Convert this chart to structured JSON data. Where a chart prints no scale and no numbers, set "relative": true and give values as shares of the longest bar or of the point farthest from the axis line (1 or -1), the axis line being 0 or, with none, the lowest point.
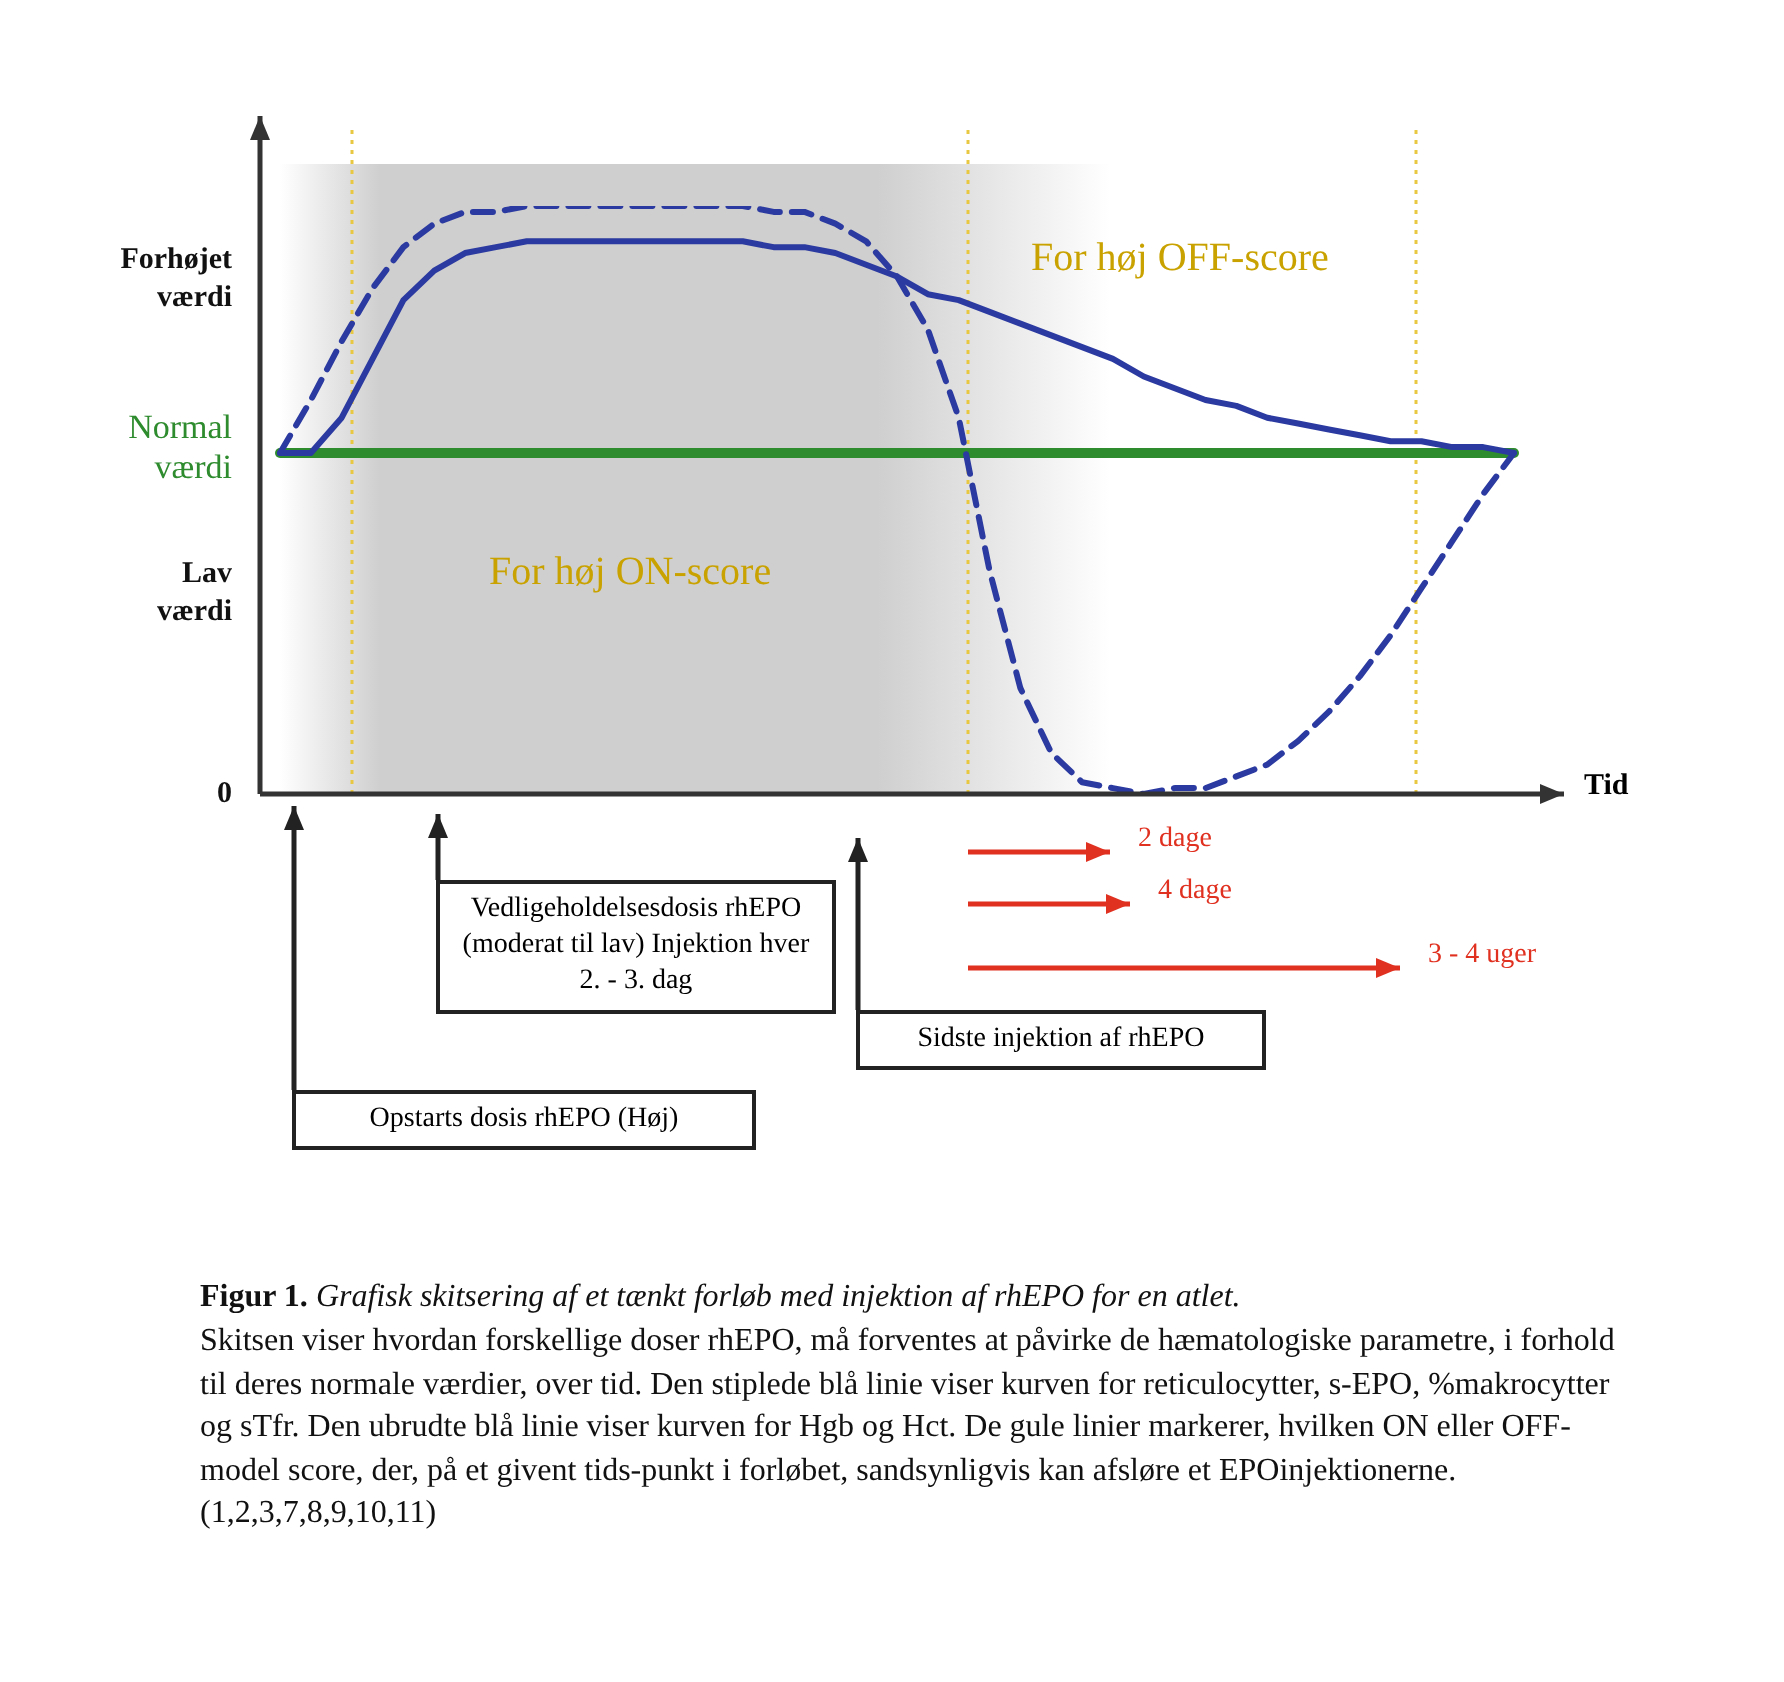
{
  "chart_data": {
    "type": "line",
    "xlabel": "Tid",
    "relative": true,
    "legend": false,
    "marker": "none",
    "categories": [
      null,
      null,
      null,
      null,
      null,
      null,
      null,
      null,
      null,
      null,
      null,
      null,
      null,
      null,
      null,
      null,
      null,
      null,
      null,
      null,
      null,
      null,
      null,
      null,
      null,
      null,
      null,
      null,
      null,
      null,
      null,
      null,
      null,
      null,
      null,
      null,
      null,
      null,
      null,
      null,
      null
    ],
    "series": [
      {
        "color": "#2b3aa0",
        "line_style": "solid",
        "values": [
          0.58,
          0.58,
          0.64,
          0.74,
          0.84,
          0.89,
          0.92,
          0.93,
          0.94,
          0.94,
          0.94,
          0.94,
          0.94,
          0.94,
          0.94,
          0.94,
          0.93,
          0.93,
          0.92,
          0.9,
          0.88,
          0.85,
          0.84,
          0.82,
          0.8,
          0.78,
          0.76,
          0.74,
          0.71,
          0.69,
          0.67,
          0.66,
          0.64,
          0.63,
          0.62,
          0.61,
          0.6,
          0.6,
          0.59,
          0.59,
          0.58
        ]
      },
      {
        "color": "#2b3aa0",
        "line_style": "dashed",
        "values": [
          0.58,
          0.67,
          0.77,
          0.86,
          0.93,
          0.97,
          0.99,
          0.99,
          1.0,
          1.0,
          1.0,
          1.0,
          1.0,
          1.0,
          1.0,
          1.0,
          0.99,
          0.99,
          0.97,
          0.94,
          0.88,
          0.79,
          0.64,
          0.38,
          0.18,
          0.07,
          0.02,
          0.01,
          0.0,
          0.01,
          0.01,
          0.03,
          0.05,
          0.09,
          0.14,
          0.2,
          0.27,
          0.35,
          0.43,
          0.51,
          0.58
        ]
      },
      {
        "name": "Normal værdi",
        "color": "#2e8b2e",
        "line_style": "solid",
        "values": [
          0.58,
          0.58,
          0.58,
          0.58,
          0.58,
          0.58,
          0.58,
          0.58,
          0.58,
          0.58,
          0.58,
          0.58,
          0.58,
          0.58,
          0.58,
          0.58,
          0.58,
          0.58,
          0.58,
          0.58,
          0.58,
          0.58,
          0.58,
          0.58,
          0.58,
          0.58,
          0.58,
          0.58,
          0.58,
          0.58,
          0.58,
          0.58,
          0.58,
          0.58,
          0.58,
          0.58,
          0.58,
          0.58,
          0.58,
          0.58,
          0.58
        ]
      }
    ],
    "annotations": [
      "Forhøjet værdi",
      "Lav værdi",
      "0",
      "For høj ON-score",
      "For høj OFF-score",
      "Opstarts dosis rhEPO (Høj)",
      "Vedligeholdelsesdosis rhEPO (moderat til lav) Injektion hver 2. - 3. dag",
      "Sidste injektion af rhEPO",
      "2 dage",
      "4 dage",
      "3 - 4 uger",
      "Figur 1. Grafisk skitsering af et tænkt forløb med injektion af rhEPO for en atlet.",
      "Skitsen viser hvordan forskellige doser rhEPO, må forventes at påvirke de hæmatologiske parametre, i forhold til deres normale værdier, over tid. Den stiplede blå linie viser kurven for reticulocytter, s-EPO, %makrocytter og sTfr. Den ubrudte blå linie viser kurven for Hgb og Hct. De gule linier markerer, hvilken ON eller OFF-model score, der, på et givent tids-punkt i forløbet, sandsynligvis kan afsløre et EPOinjektionerne. (1,2,3,7,8,9,10,11)"
    ]
  }
}
